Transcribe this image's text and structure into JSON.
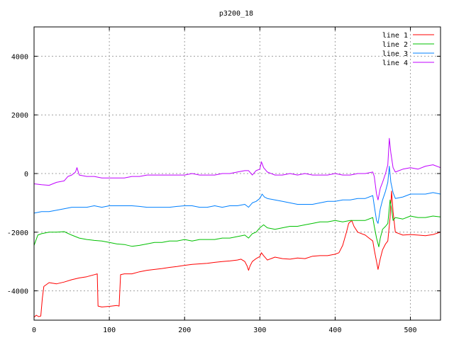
{
  "chart_data": {
    "type": "line",
    "title": "p3200_18",
    "xlabel": "",
    "ylabel": "",
    "xlim": [
      0,
      540
    ],
    "ylim": [
      -5000,
      5000
    ],
    "x_ticks": [
      0,
      100,
      200,
      300,
      400,
      500
    ],
    "y_ticks": [
      -4000,
      -2000,
      0,
      2000,
      4000
    ],
    "grid": true,
    "legend_position": "top-right",
    "series": [
      {
        "name": "line 1",
        "color": "#ff0000",
        "points": [
          [
            0,
            -4900
          ],
          [
            3,
            -4830
          ],
          [
            6,
            -4880
          ],
          [
            9,
            -4860
          ],
          [
            11,
            -4250
          ],
          [
            13,
            -3850
          ],
          [
            20,
            -3720
          ],
          [
            30,
            -3760
          ],
          [
            40,
            -3700
          ],
          [
            50,
            -3620
          ],
          [
            60,
            -3560
          ],
          [
            70,
            -3520
          ],
          [
            80,
            -3450
          ],
          [
            84,
            -3420
          ],
          [
            85,
            -4520
          ],
          [
            90,
            -4550
          ],
          [
            100,
            -4530
          ],
          [
            110,
            -4500
          ],
          [
            113,
            -4520
          ],
          [
            115,
            -3450
          ],
          [
            120,
            -3420
          ],
          [
            130,
            -3420
          ],
          [
            140,
            -3350
          ],
          [
            150,
            -3300
          ],
          [
            160,
            -3270
          ],
          [
            170,
            -3240
          ],
          [
            180,
            -3200
          ],
          [
            190,
            -3170
          ],
          [
            200,
            -3130
          ],
          [
            210,
            -3100
          ],
          [
            220,
            -3080
          ],
          [
            230,
            -3060
          ],
          [
            240,
            -3030
          ],
          [
            250,
            -3000
          ],
          [
            260,
            -2980
          ],
          [
            270,
            -2950
          ],
          [
            275,
            -2920
          ],
          [
            280,
            -3000
          ],
          [
            283,
            -3150
          ],
          [
            285,
            -3300
          ],
          [
            287,
            -3150
          ],
          [
            290,
            -3000
          ],
          [
            295,
            -2900
          ],
          [
            300,
            -2830
          ],
          [
            302,
            -2700
          ],
          [
            305,
            -2800
          ],
          [
            310,
            -2950
          ],
          [
            320,
            -2850
          ],
          [
            330,
            -2900
          ],
          [
            340,
            -2920
          ],
          [
            350,
            -2880
          ],
          [
            360,
            -2900
          ],
          [
            370,
            -2820
          ],
          [
            380,
            -2800
          ],
          [
            390,
            -2800
          ],
          [
            400,
            -2750
          ],
          [
            405,
            -2700
          ],
          [
            410,
            -2450
          ],
          [
            415,
            -2000
          ],
          [
            418,
            -1700
          ],
          [
            422,
            -1600
          ],
          [
            425,
            -1800
          ],
          [
            430,
            -2000
          ],
          [
            440,
            -2100
          ],
          [
            445,
            -2200
          ],
          [
            450,
            -2300
          ],
          [
            452,
            -2600
          ],
          [
            455,
            -3000
          ],
          [
            457,
            -3270
          ],
          [
            460,
            -2900
          ],
          [
            463,
            -2600
          ],
          [
            467,
            -2400
          ],
          [
            470,
            -2300
          ],
          [
            473,
            -1500
          ],
          [
            475,
            -600
          ],
          [
            477,
            -1300
          ],
          [
            480,
            -2000
          ],
          [
            490,
            -2100
          ],
          [
            500,
            -2080
          ],
          [
            510,
            -2100
          ],
          [
            520,
            -2120
          ],
          [
            530,
            -2080
          ],
          [
            540,
            -2000
          ]
        ]
      },
      {
        "name": "line 2",
        "color": "#00c000",
        "points": [
          [
            0,
            -2450
          ],
          [
            5,
            -2100
          ],
          [
            10,
            -2050
          ],
          [
            20,
            -2000
          ],
          [
            30,
            -2000
          ],
          [
            40,
            -1980
          ],
          [
            50,
            -2100
          ],
          [
            60,
            -2200
          ],
          [
            70,
            -2250
          ],
          [
            80,
            -2280
          ],
          [
            90,
            -2300
          ],
          [
            100,
            -2350
          ],
          [
            110,
            -2400
          ],
          [
            120,
            -2420
          ],
          [
            130,
            -2480
          ],
          [
            140,
            -2450
          ],
          [
            150,
            -2400
          ],
          [
            160,
            -2350
          ],
          [
            170,
            -2350
          ],
          [
            180,
            -2300
          ],
          [
            190,
            -2300
          ],
          [
            200,
            -2250
          ],
          [
            210,
            -2300
          ],
          [
            220,
            -2250
          ],
          [
            230,
            -2250
          ],
          [
            240,
            -2250
          ],
          [
            250,
            -2200
          ],
          [
            260,
            -2200
          ],
          [
            270,
            -2150
          ],
          [
            280,
            -2100
          ],
          [
            285,
            -2200
          ],
          [
            290,
            -2050
          ],
          [
            295,
            -2000
          ],
          [
            300,
            -1850
          ],
          [
            305,
            -1750
          ],
          [
            310,
            -1850
          ],
          [
            320,
            -1900
          ],
          [
            330,
            -1850
          ],
          [
            340,
            -1800
          ],
          [
            350,
            -1800
          ],
          [
            360,
            -1750
          ],
          [
            370,
            -1700
          ],
          [
            380,
            -1650
          ],
          [
            390,
            -1650
          ],
          [
            400,
            -1600
          ],
          [
            410,
            -1650
          ],
          [
            420,
            -1600
          ],
          [
            430,
            -1600
          ],
          [
            440,
            -1600
          ],
          [
            450,
            -1500
          ],
          [
            452,
            -1800
          ],
          [
            455,
            -2200
          ],
          [
            458,
            -2500
          ],
          [
            460,
            -2200
          ],
          [
            463,
            -1900
          ],
          [
            467,
            -1800
          ],
          [
            470,
            -1700
          ],
          [
            473,
            -900
          ],
          [
            475,
            -1200
          ],
          [
            477,
            -1600
          ],
          [
            480,
            -1500
          ],
          [
            490,
            -1550
          ],
          [
            500,
            -1450
          ],
          [
            510,
            -1500
          ],
          [
            520,
            -1500
          ],
          [
            530,
            -1450
          ],
          [
            540,
            -1480
          ]
        ]
      },
      {
        "name": "line 3",
        "color": "#0080ff",
        "points": [
          [
            0,
            -1350
          ],
          [
            10,
            -1300
          ],
          [
            20,
            -1300
          ],
          [
            30,
            -1250
          ],
          [
            40,
            -1200
          ],
          [
            50,
            -1150
          ],
          [
            60,
            -1150
          ],
          [
            70,
            -1150
          ],
          [
            80,
            -1100
          ],
          [
            90,
            -1150
          ],
          [
            100,
            -1100
          ],
          [
            110,
            -1100
          ],
          [
            120,
            -1100
          ],
          [
            130,
            -1100
          ],
          [
            140,
            -1120
          ],
          [
            150,
            -1150
          ],
          [
            160,
            -1150
          ],
          [
            170,
            -1150
          ],
          [
            180,
            -1150
          ],
          [
            190,
            -1120
          ],
          [
            200,
            -1100
          ],
          [
            210,
            -1100
          ],
          [
            220,
            -1150
          ],
          [
            230,
            -1150
          ],
          [
            240,
            -1100
          ],
          [
            250,
            -1150
          ],
          [
            260,
            -1100
          ],
          [
            270,
            -1100
          ],
          [
            280,
            -1050
          ],
          [
            285,
            -1150
          ],
          [
            290,
            -1000
          ],
          [
            295,
            -950
          ],
          [
            300,
            -850
          ],
          [
            303,
            -700
          ],
          [
            306,
            -800
          ],
          [
            310,
            -850
          ],
          [
            320,
            -900
          ],
          [
            330,
            -950
          ],
          [
            340,
            -1000
          ],
          [
            350,
            -1050
          ],
          [
            360,
            -1050
          ],
          [
            370,
            -1050
          ],
          [
            380,
            -1000
          ],
          [
            390,
            -950
          ],
          [
            400,
            -950
          ],
          [
            410,
            -900
          ],
          [
            420,
            -900
          ],
          [
            430,
            -850
          ],
          [
            440,
            -850
          ],
          [
            450,
            -750
          ],
          [
            452,
            -1100
          ],
          [
            455,
            -1600
          ],
          [
            457,
            -1700
          ],
          [
            460,
            -1200
          ],
          [
            463,
            -900
          ],
          [
            467,
            -600
          ],
          [
            470,
            -300
          ],
          [
            472,
            250
          ],
          [
            474,
            -300
          ],
          [
            477,
            -650
          ],
          [
            480,
            -850
          ],
          [
            490,
            -800
          ],
          [
            500,
            -700
          ],
          [
            510,
            -700
          ],
          [
            520,
            -700
          ],
          [
            530,
            -650
          ],
          [
            540,
            -700
          ]
        ]
      },
      {
        "name": "line 4",
        "color": "#c000ff",
        "points": [
          [
            0,
            -350
          ],
          [
            10,
            -380
          ],
          [
            20,
            -400
          ],
          [
            30,
            -300
          ],
          [
            40,
            -250
          ],
          [
            45,
            -100
          ],
          [
            50,
            -50
          ],
          [
            55,
            50
          ],
          [
            57,
            200
          ],
          [
            60,
            -50
          ],
          [
            70,
            -100
          ],
          [
            80,
            -100
          ],
          [
            90,
            -150
          ],
          [
            100,
            -150
          ],
          [
            110,
            -150
          ],
          [
            120,
            -150
          ],
          [
            130,
            -100
          ],
          [
            140,
            -100
          ],
          [
            150,
            -50
          ],
          [
            160,
            -50
          ],
          [
            170,
            -50
          ],
          [
            180,
            -50
          ],
          [
            190,
            -50
          ],
          [
            200,
            -50
          ],
          [
            210,
            0
          ],
          [
            220,
            -50
          ],
          [
            230,
            -50
          ],
          [
            240,
            -50
          ],
          [
            250,
            0
          ],
          [
            260,
            0
          ],
          [
            270,
            50
          ],
          [
            280,
            100
          ],
          [
            285,
            100
          ],
          [
            290,
            -50
          ],
          [
            295,
            100
          ],
          [
            300,
            150
          ],
          [
            302,
            400
          ],
          [
            305,
            200
          ],
          [
            310,
            50
          ],
          [
            320,
            -50
          ],
          [
            330,
            -50
          ],
          [
            340,
            0
          ],
          [
            350,
            -50
          ],
          [
            360,
            0
          ],
          [
            370,
            -50
          ],
          [
            380,
            -50
          ],
          [
            390,
            -50
          ],
          [
            400,
            0
          ],
          [
            410,
            -50
          ],
          [
            420,
            -50
          ],
          [
            430,
            0
          ],
          [
            440,
            0
          ],
          [
            450,
            50
          ],
          [
            452,
            -100
          ],
          [
            455,
            -700
          ],
          [
            457,
            -900
          ],
          [
            460,
            -500
          ],
          [
            463,
            -300
          ],
          [
            467,
            0
          ],
          [
            470,
            300
          ],
          [
            472,
            1200
          ],
          [
            474,
            700
          ],
          [
            477,
            200
          ],
          [
            480,
            50
          ],
          [
            490,
            150
          ],
          [
            500,
            200
          ],
          [
            510,
            150
          ],
          [
            520,
            250
          ],
          [
            530,
            300
          ],
          [
            540,
            200
          ]
        ]
      }
    ]
  }
}
